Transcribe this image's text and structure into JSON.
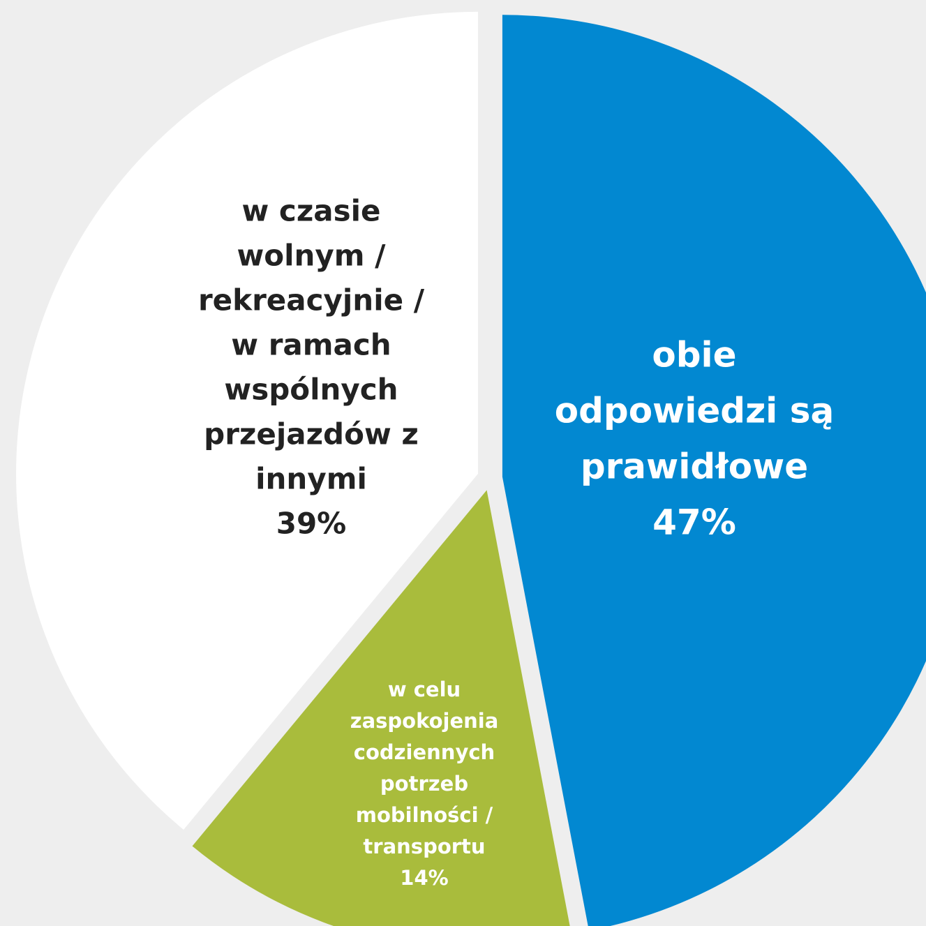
{
  "chart_data": {
    "type": "pie",
    "labels": [
      [
        "obie",
        "odpowiedzi są",
        "prawidłowe"
      ],
      [
        "w celu",
        "zaspokojenia",
        "codziennych",
        "potrzeb",
        "mobilności /",
        "transportu"
      ],
      [
        "w czasie",
        "wolnym /",
        "rekreacyjnie /",
        "w ramach",
        "wspólnych",
        "przejazdów z",
        "innymi"
      ]
    ],
    "values": [
      47,
      14,
      39
    ],
    "value_labels": [
      "47%",
      "14%",
      "39%"
    ],
    "colors": [
      "#0288d1",
      "#a9bc3c",
      "#ffffff"
    ]
  }
}
